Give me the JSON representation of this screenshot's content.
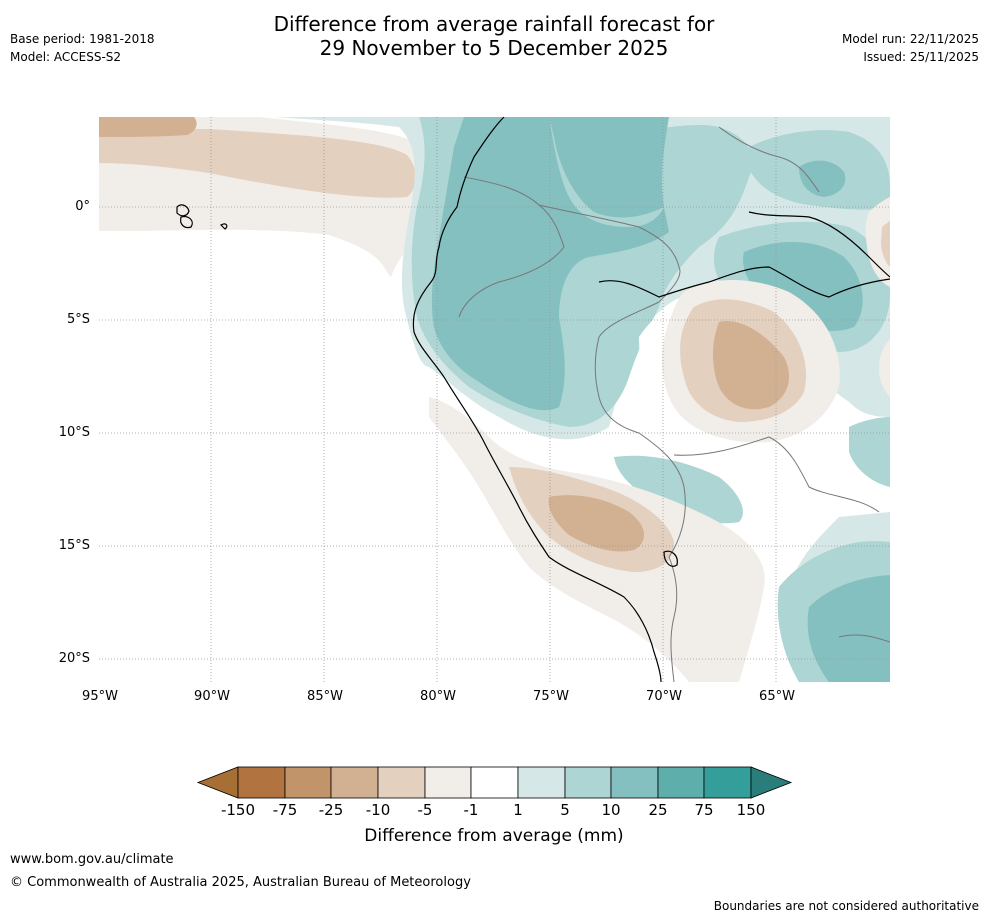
{
  "header": {
    "title_line1": "Difference from average rainfall forecast for",
    "title_line2": "29 November to 5 December 2025",
    "base_period": "Base period: 1981-2018",
    "model": "Model: ACCESS-S2",
    "model_run": "Model run: 22/11/2025",
    "issued": "Issued: 25/11/2025"
  },
  "map": {
    "lat_labels": [
      "0°",
      "5°S",
      "10°S",
      "15°S",
      "20°S"
    ],
    "lon_labels": [
      "95°W",
      "90°W",
      "85°W",
      "80°W",
      "75°W",
      "70°W",
      "65°W"
    ]
  },
  "colorbar": {
    "ticks": [
      "-150",
      "-75",
      "-25",
      "-10",
      "-5",
      "-1",
      "1",
      "5",
      "10",
      "25",
      "75",
      "150"
    ],
    "colors": [
      "#a86f35",
      "#b17440",
      "#c2946a",
      "#d2b193",
      "#e3d0bf",
      "#f1ede8",
      "#ffffff",
      "#d5e8e7",
      "#acd5d3",
      "#84c0bf",
      "#5eaeac",
      "#349f9a",
      "#2a7d7b"
    ],
    "title": "Difference from average (mm)"
  },
  "footer": {
    "url": "www.bom.gov.au/climate",
    "copyright": "© Commonwealth of Australia 2025, Australian Bureau of Meteorology",
    "disclaimer": "Boundaries are not considered authoritative"
  }
}
